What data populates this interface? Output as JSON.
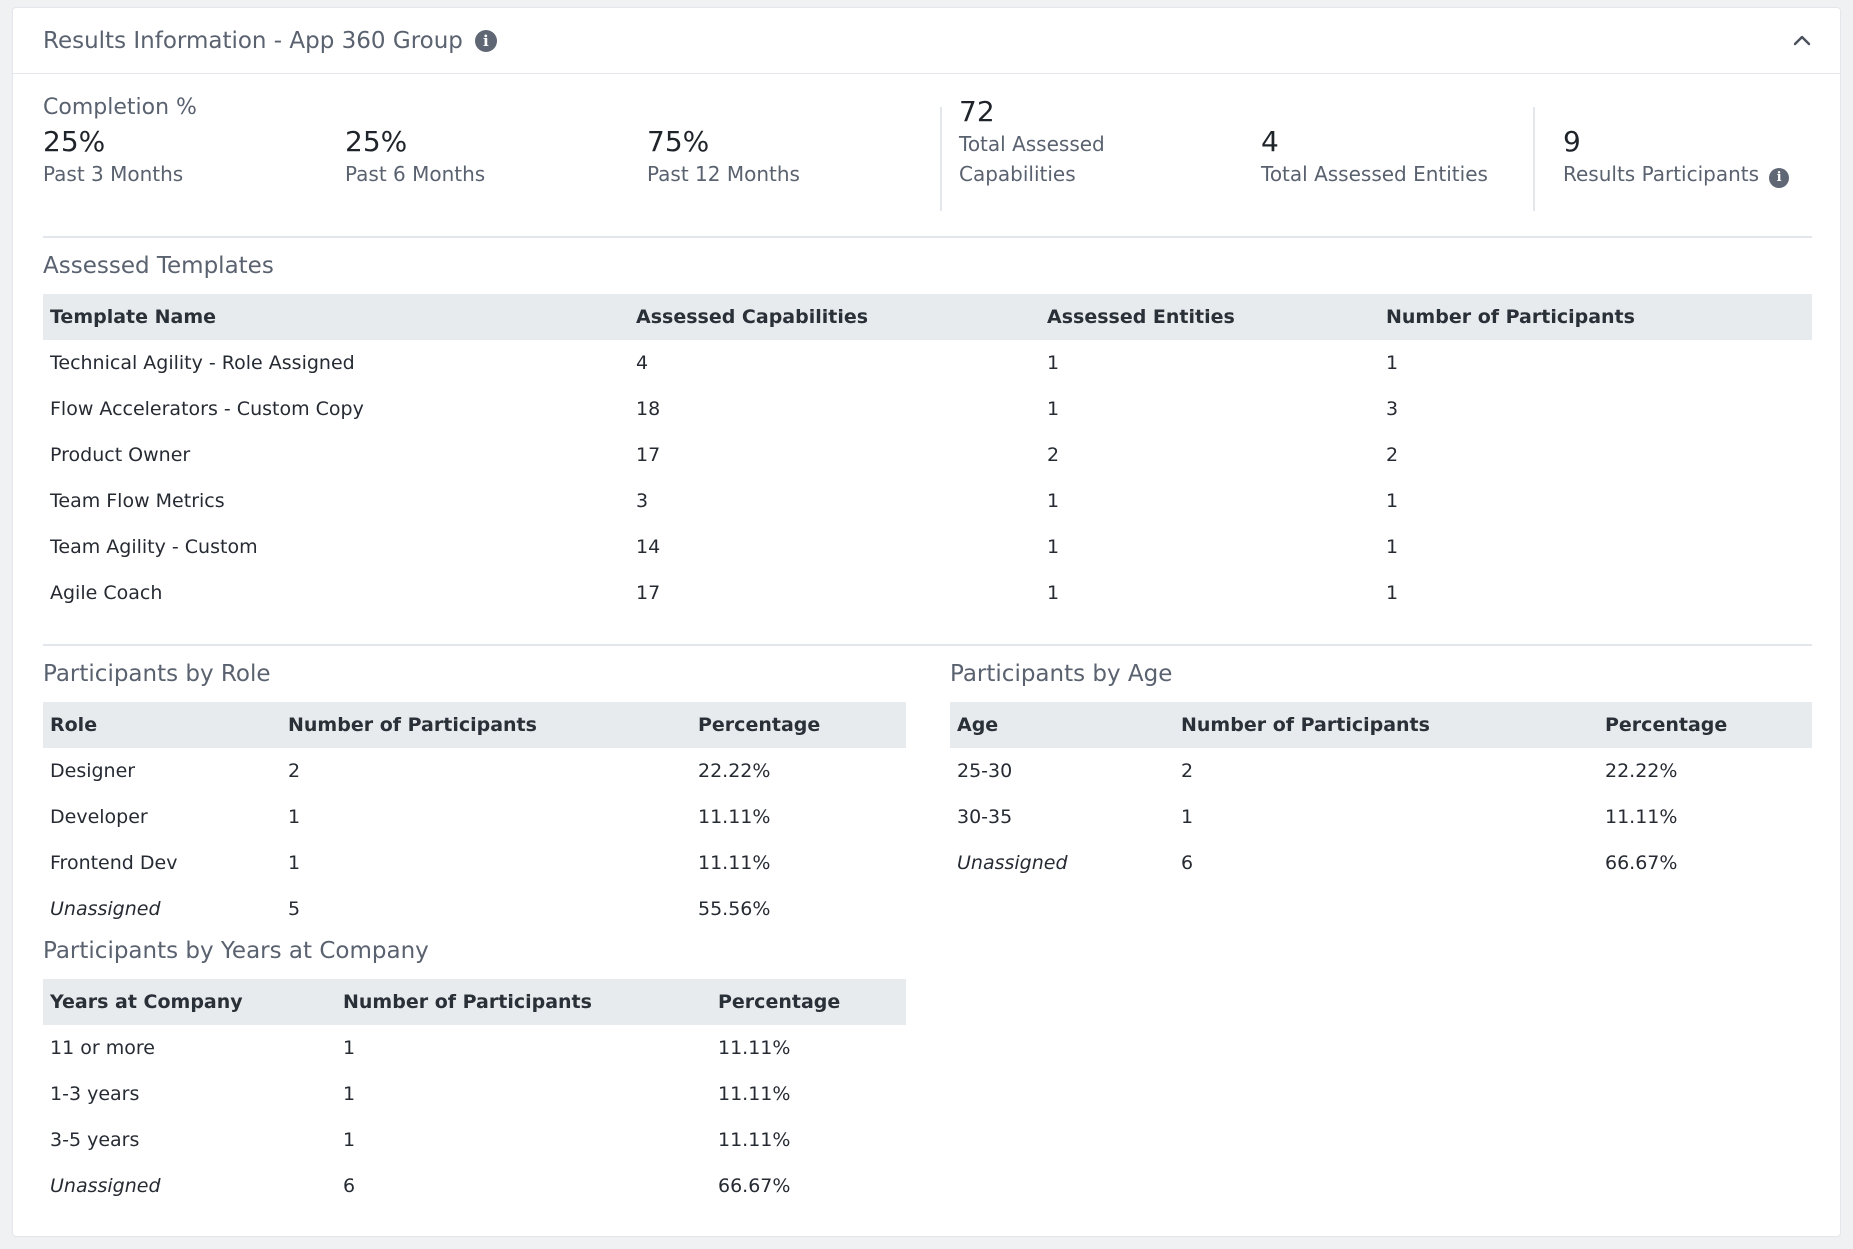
{
  "header": {
    "title": "Results Information - App 360 Group"
  },
  "completion": {
    "title": "Completion %",
    "items": [
      {
        "value": "25%",
        "label": "Past 3 Months"
      },
      {
        "value": "25%",
        "label": "Past 6 Months"
      },
      {
        "value": "75%",
        "label": "Past 12 Months"
      }
    ]
  },
  "totals": {
    "capabilities": {
      "value": "72",
      "label_line1": "Total Assessed",
      "label_line2": "Capabilities"
    },
    "entities": {
      "value": "4",
      "label": "Total Assessed Entities"
    },
    "participants": {
      "value": "9",
      "label": "Results Participants"
    }
  },
  "templates": {
    "title": "Assessed Templates",
    "columns": [
      "Template Name",
      "Assessed Capabilities",
      "Assessed Entities",
      "Number of Participants"
    ],
    "rows": [
      [
        "Technical Agility - Role Assigned",
        "4",
        "1",
        "1"
      ],
      [
        "Flow Accelerators - Custom Copy",
        "18",
        "1",
        "3"
      ],
      [
        "Product Owner",
        "17",
        "2",
        "2"
      ],
      [
        "Team Flow Metrics",
        "3",
        "1",
        "1"
      ],
      [
        "Team Agility - Custom",
        "14",
        "1",
        "1"
      ],
      [
        "Agile Coach",
        "17",
        "1",
        "1"
      ]
    ]
  },
  "by_role": {
    "title": "Participants by Role",
    "columns": [
      "Role",
      "Number of Participants",
      "Percentage"
    ],
    "rows": [
      [
        "Designer",
        "2",
        "22.22%"
      ],
      [
        "Developer",
        "1",
        "11.11%"
      ],
      [
        "Frontend Dev",
        "1",
        "11.11%"
      ],
      [
        "Unassigned",
        "5",
        "55.56%"
      ]
    ]
  },
  "by_age": {
    "title": "Participants by Age",
    "columns": [
      "Age",
      "Number of Participants",
      "Percentage"
    ],
    "rows": [
      [
        "25-30",
        "2",
        "22.22%"
      ],
      [
        "30-35",
        "1",
        "11.11%"
      ],
      [
        "Unassigned",
        "6",
        "66.67%"
      ]
    ]
  },
  "by_years": {
    "title": "Participants by Years at Company",
    "columns": [
      "Years at Company",
      "Number of Participants",
      "Percentage"
    ],
    "rows": [
      [
        "11 or more",
        "1",
        "11.11%"
      ],
      [
        "1-3 years",
        "1",
        "11.11%"
      ],
      [
        "3-5 years",
        "1",
        "11.11%"
      ],
      [
        "Unassigned",
        "6",
        "66.67%"
      ]
    ]
  }
}
